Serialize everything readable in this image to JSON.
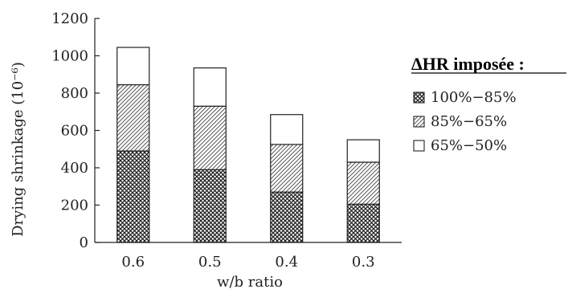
{
  "chart_data": {
    "type": "bar",
    "stacked": true,
    "categories": [
      "0.6",
      "0.5",
      "0.4",
      "0.3"
    ],
    "series": [
      {
        "name": "100%−85%",
        "values": [
          490,
          390,
          270,
          205
        ],
        "pattern": "crosshatch"
      },
      {
        "name": "85%−65%",
        "values": [
          355,
          340,
          255,
          225
        ],
        "pattern": "diagonal"
      },
      {
        "name": "65%−50%",
        "values": [
          200,
          205,
          160,
          120
        ],
        "pattern": "blank"
      }
    ],
    "title": "",
    "xlabel": "w/b ratio",
    "ylabel": "Drying shrinkage (10⁻⁶)",
    "ylim": [
      0,
      1200
    ],
    "yticks": [
      "0",
      "200",
      "400",
      "600",
      "800",
      "1000",
      "1200"
    ],
    "legend_title": "ΔHR imposée :",
    "legend_position": "right",
    "grid": false,
    "colors": {
      "stroke": "#222222",
      "fill": "#ffffff"
    }
  }
}
